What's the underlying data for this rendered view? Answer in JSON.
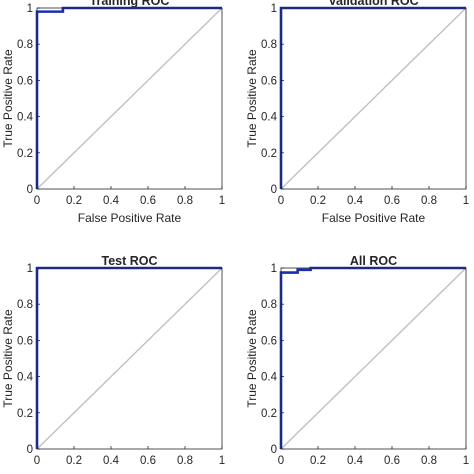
{
  "chart_data": [
    {
      "type": "line",
      "title": "Training ROC",
      "xlabel": "False Positive Rate",
      "ylabel": "True Positive Rate",
      "xlim": [
        0,
        1
      ],
      "ylim": [
        0,
        1
      ],
      "xticks": [
        "0",
        "0.2",
        "0.4",
        "0.6",
        "0.8",
        "1"
      ],
      "yticks": [
        "0",
        "0.2",
        "0.4",
        "0.6",
        "0.8",
        "1"
      ],
      "grid": false,
      "series": [
        {
          "x": [
            0,
            0,
            0.14,
            0.14,
            1
          ],
          "y": [
            0,
            0.98,
            0.98,
            1,
            1
          ],
          "color": "#1a2eb5"
        },
        {
          "x": [
            0,
            1
          ],
          "y": [
            0,
            1
          ],
          "color": "#c0c0c0"
        }
      ]
    },
    {
      "type": "line",
      "title": "Validation ROC",
      "xlabel": "False Positive Rate",
      "ylabel": "True Positive Rate",
      "xlim": [
        0,
        1
      ],
      "ylim": [
        0,
        1
      ],
      "xticks": [
        "0",
        "0.2",
        "0.4",
        "0.6",
        "0.8",
        "1"
      ],
      "yticks": [
        "0",
        "0.2",
        "0.4",
        "0.6",
        "0.8",
        "1"
      ],
      "grid": false,
      "series": [
        {
          "x": [
            0,
            0,
            1
          ],
          "y": [
            0,
            1,
            1
          ],
          "color": "#1a2eb5"
        },
        {
          "x": [
            0,
            1
          ],
          "y": [
            0,
            1
          ],
          "color": "#c0c0c0"
        }
      ]
    },
    {
      "type": "line",
      "title": "Test ROC",
      "xlabel": "",
      "ylabel": "True Positive Rate",
      "xlim": [
        0,
        1
      ],
      "ylim": [
        0,
        1
      ],
      "xticks": [
        "0",
        "0.2",
        "0.4",
        "0.6",
        "0.8",
        "1"
      ],
      "yticks": [
        "0",
        "0.2",
        "0.4",
        "0.6",
        "0.8",
        "1"
      ],
      "grid": false,
      "series": [
        {
          "x": [
            0,
            0,
            1
          ],
          "y": [
            0,
            1,
            1
          ],
          "color": "#1a2eb5"
        },
        {
          "x": [
            0,
            1
          ],
          "y": [
            0,
            1
          ],
          "color": "#c0c0c0"
        }
      ]
    },
    {
      "type": "line",
      "title": "All ROC",
      "xlabel": "",
      "ylabel": "True Positive Rate",
      "xlim": [
        0,
        1
      ],
      "ylim": [
        0,
        1
      ],
      "xticks": [
        "0",
        "0.2",
        "0.4",
        "0.6",
        "0.8",
        "1"
      ],
      "yticks": [
        "0",
        "0.2",
        "0.4",
        "0.6",
        "0.8",
        "1"
      ],
      "grid": false,
      "series": [
        {
          "x": [
            0,
            0,
            0.09,
            0.09,
            0.16,
            0.16,
            1
          ],
          "y": [
            0,
            0.975,
            0.975,
            0.99,
            0.99,
            1,
            1
          ],
          "color": "#1a2eb5"
        },
        {
          "x": [
            0,
            1
          ],
          "y": [
            0,
            1
          ],
          "color": "#c0c0c0"
        }
      ]
    }
  ]
}
